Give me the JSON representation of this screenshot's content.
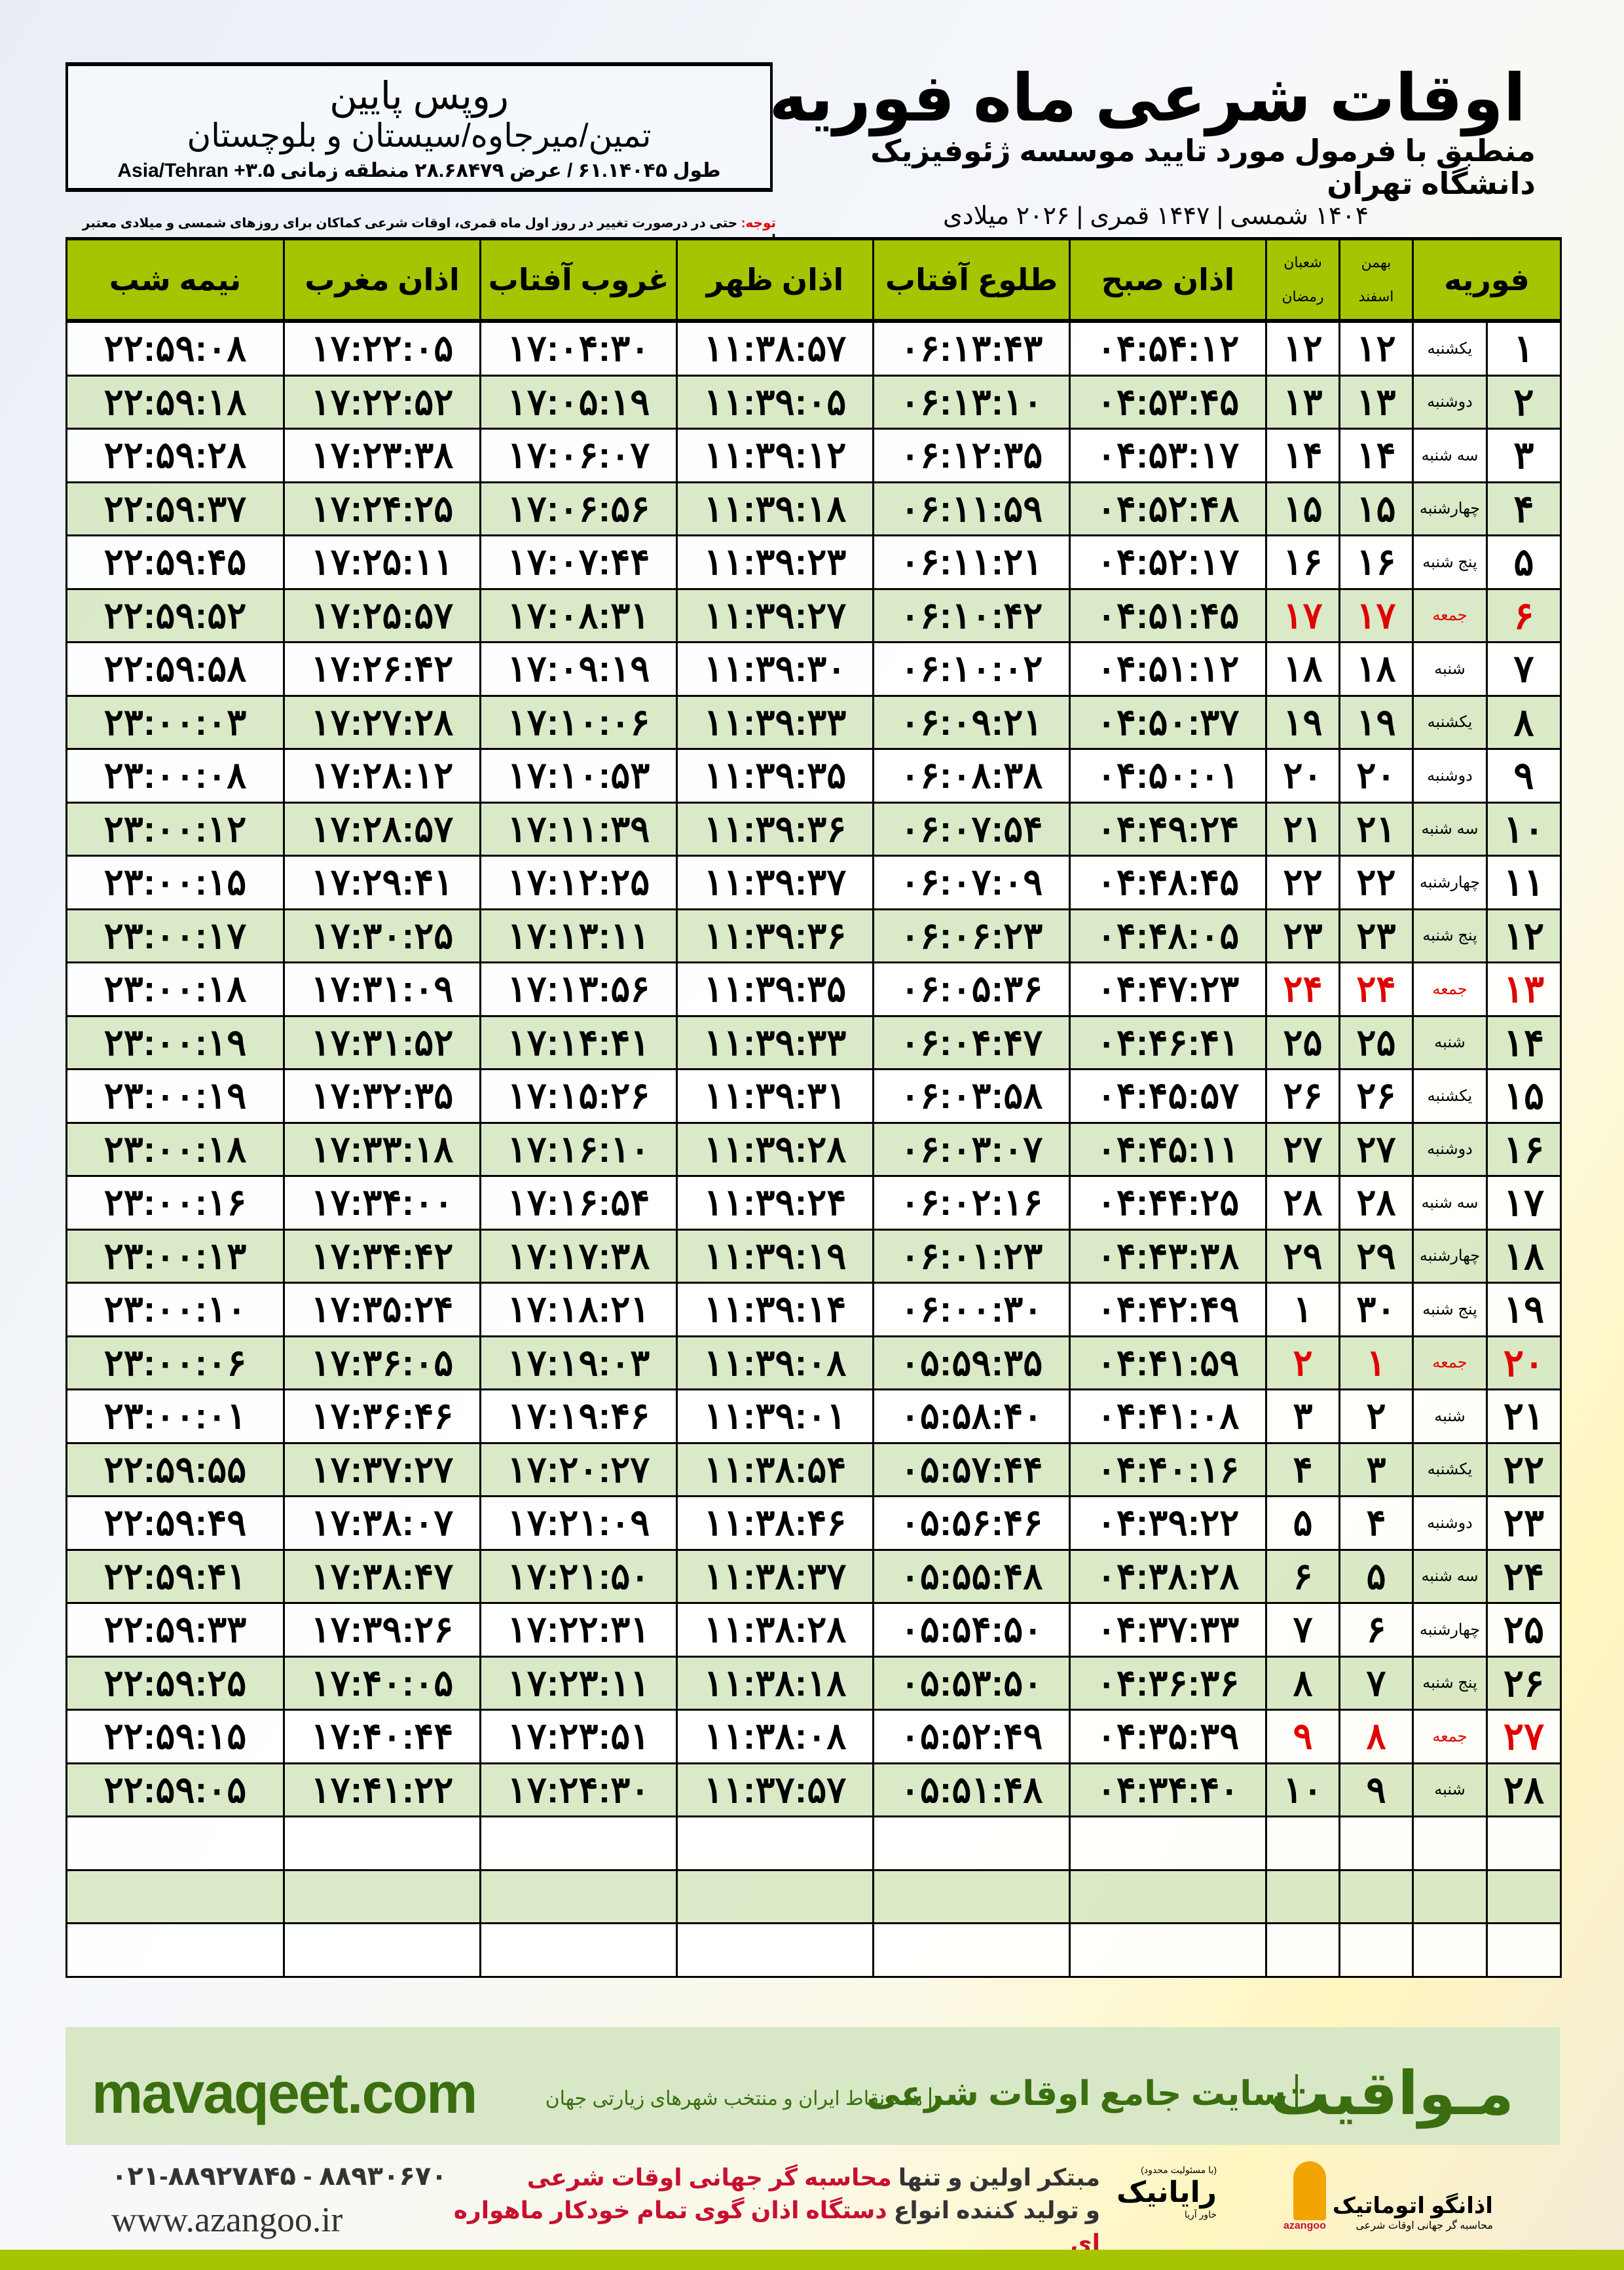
{
  "location": {
    "city": "روپس پایین",
    "province": "تمین/میرجاوه/سیستان و بلوچستان",
    "coords": "طول ۶۱.۱۴۰۴۵ / عرض ۲۸.۶۸۴۷۹ منطقه زمانی ۳.۵+ Asia/Tehran"
  },
  "header": {
    "title": "اوقات شرعی ماه فوریه",
    "subtitle": "منطبق با فرمول مورد تایید موسسه ژئوفیزیک دانشگاه تهران",
    "years": "۱۴۰۴ شمسی | ۱۴۴۷ قمری | ۲۰۲۶ میلادی"
  },
  "note": {
    "label": "توجه:",
    "text": " حتی در درصورت تغییر در روز اول ماه قمری، اوقات شرعی کماکان برای روزهای شمسی و میلادی معتبر است."
  },
  "table": {
    "headers": {
      "month": "فوریه",
      "solar_top": "بهمن",
      "solar_bottom": "اسفند",
      "lunar_top": "شعبان",
      "lunar_bottom": "رمضان",
      "fajr": "اذان صبح",
      "sunrise": "طلوع آفتاب",
      "dhuhr": "اذان ظهر",
      "sunset": "غروب آفتاب",
      "maghrib": "اذان مغرب",
      "midnight": "نیمه شب"
    },
    "holiday_color": "#e00000",
    "rows": [
      [
        "۱",
        "یکشنبه",
        "۱۲",
        "۱۲",
        "۰۴:۵۴:۱۲",
        "۰۶:۱۳:۴۳",
        "۱۱:۳۸:۵۷",
        "۱۷:۰۴:۳۰",
        "۱۷:۲۲:۰۵",
        "۲۲:۵۹:۰۸"
      ],
      [
        "۲",
        "دوشنبه",
        "۱۳",
        "۱۳",
        "۰۴:۵۳:۴۵",
        "۰۶:۱۳:۱۰",
        "۱۱:۳۹:۰۵",
        "۱۷:۰۵:۱۹",
        "۱۷:۲۲:۵۲",
        "۲۲:۵۹:۱۸"
      ],
      [
        "۳",
        "سه شنبه",
        "۱۴",
        "۱۴",
        "۰۴:۵۳:۱۷",
        "۰۶:۱۲:۳۵",
        "۱۱:۳۹:۱۲",
        "۱۷:۰۶:۰۷",
        "۱۷:۲۳:۳۸",
        "۲۲:۵۹:۲۸"
      ],
      [
        "۴",
        "چهارشنبه",
        "۱۵",
        "۱۵",
        "۰۴:۵۲:۴۸",
        "۰۶:۱۱:۵۹",
        "۱۱:۳۹:۱۸",
        "۱۷:۰۶:۵۶",
        "۱۷:۲۴:۲۵",
        "۲۲:۵۹:۳۷"
      ],
      [
        "۵",
        "پنج شنبه",
        "۱۶",
        "۱۶",
        "۰۴:۵۲:۱۷",
        "۰۶:۱۱:۲۱",
        "۱۱:۳۹:۲۳",
        "۱۷:۰۷:۴۴",
        "۱۷:۲۵:۱۱",
        "۲۲:۵۹:۴۵"
      ],
      [
        "۶",
        "جمعه",
        "۱۷",
        "۱۷",
        "۰۴:۵۱:۴۵",
        "۰۶:۱۰:۴۲",
        "۱۱:۳۹:۲۷",
        "۱۷:۰۸:۳۱",
        "۱۷:۲۵:۵۷",
        "۲۲:۵۹:۵۲"
      ],
      [
        "۷",
        "شنبه",
        "۱۸",
        "۱۸",
        "۰۴:۵۱:۱۲",
        "۰۶:۱۰:۰۲",
        "۱۱:۳۹:۳۰",
        "۱۷:۰۹:۱۹",
        "۱۷:۲۶:۴۲",
        "۲۲:۵۹:۵۸"
      ],
      [
        "۸",
        "یکشنبه",
        "۱۹",
        "۱۹",
        "۰۴:۵۰:۳۷",
        "۰۶:۰۹:۲۱",
        "۱۱:۳۹:۳۳",
        "۱۷:۱۰:۰۶",
        "۱۷:۲۷:۲۸",
        "۲۳:۰۰:۰۳"
      ],
      [
        "۹",
        "دوشنبه",
        "۲۰",
        "۲۰",
        "۰۴:۵۰:۰۱",
        "۰۶:۰۸:۳۸",
        "۱۱:۳۹:۳۵",
        "۱۷:۱۰:۵۳",
        "۱۷:۲۸:۱۲",
        "۲۳:۰۰:۰۸"
      ],
      [
        "۱۰",
        "سه شنبه",
        "۲۱",
        "۲۱",
        "۰۴:۴۹:۲۴",
        "۰۶:۰۷:۵۴",
        "۱۱:۳۹:۳۶",
        "۱۷:۱۱:۳۹",
        "۱۷:۲۸:۵۷",
        "۲۳:۰۰:۱۲"
      ],
      [
        "۱۱",
        "چهارشنبه",
        "۲۲",
        "۲۲",
        "۰۴:۴۸:۴۵",
        "۰۶:۰۷:۰۹",
        "۱۱:۳۹:۳۷",
        "۱۷:۱۲:۲۵",
        "۱۷:۲۹:۴۱",
        "۲۳:۰۰:۱۵"
      ],
      [
        "۱۲",
        "پنج شنبه",
        "۲۳",
        "۲۳",
        "۰۴:۴۸:۰۵",
        "۰۶:۰۶:۲۳",
        "۱۱:۳۹:۳۶",
        "۱۷:۱۳:۱۱",
        "۱۷:۳۰:۲۵",
        "۲۳:۰۰:۱۷"
      ],
      [
        "۱۳",
        "جمعه",
        "۲۴",
        "۲۴",
        "۰۴:۴۷:۲۳",
        "۰۶:۰۵:۳۶",
        "۱۱:۳۹:۳۵",
        "۱۷:۱۳:۵۶",
        "۱۷:۳۱:۰۹",
        "۲۳:۰۰:۱۸"
      ],
      [
        "۱۴",
        "شنبه",
        "۲۵",
        "۲۵",
        "۰۴:۴۶:۴۱",
        "۰۶:۰۴:۴۷",
        "۱۱:۳۹:۳۳",
        "۱۷:۱۴:۴۱",
        "۱۷:۳۱:۵۲",
        "۲۳:۰۰:۱۹"
      ],
      [
        "۱۵",
        "یکشنبه",
        "۲۶",
        "۲۶",
        "۰۴:۴۵:۵۷",
        "۰۶:۰۳:۵۸",
        "۱۱:۳۹:۳۱",
        "۱۷:۱۵:۲۶",
        "۱۷:۳۲:۳۵",
        "۲۳:۰۰:۱۹"
      ],
      [
        "۱۶",
        "دوشنبه",
        "۲۷",
        "۲۷",
        "۰۴:۴۵:۱۱",
        "۰۶:۰۳:۰۷",
        "۱۱:۳۹:۲۸",
        "۱۷:۱۶:۱۰",
        "۱۷:۳۳:۱۸",
        "۲۳:۰۰:۱۸"
      ],
      [
        "۱۷",
        "سه شنبه",
        "۲۸",
        "۲۸",
        "۰۴:۴۴:۲۵",
        "۰۶:۰۲:۱۶",
        "۱۱:۳۹:۲۴",
        "۱۷:۱۶:۵۴",
        "۱۷:۳۴:۰۰",
        "۲۳:۰۰:۱۶"
      ],
      [
        "۱۸",
        "چهارشنبه",
        "۲۹",
        "۲۹",
        "۰۴:۴۳:۳۸",
        "۰۶:۰۱:۲۳",
        "۱۱:۳۹:۱۹",
        "۱۷:۱۷:۳۸",
        "۱۷:۳۴:۴۲",
        "۲۳:۰۰:۱۳"
      ],
      [
        "۱۹",
        "پنج شنبه",
        "۳۰",
        "۱",
        "۰۴:۴۲:۴۹",
        "۰۶:۰۰:۳۰",
        "۱۱:۳۹:۱۴",
        "۱۷:۱۸:۲۱",
        "۱۷:۳۵:۲۴",
        "۲۳:۰۰:۱۰"
      ],
      [
        "۲۰",
        "جمعه",
        "۱",
        "۲",
        "۰۴:۴۱:۵۹",
        "۰۵:۵۹:۳۵",
        "۱۱:۳۹:۰۸",
        "۱۷:۱۹:۰۳",
        "۱۷:۳۶:۰۵",
        "۲۳:۰۰:۰۶"
      ],
      [
        "۲۱",
        "شنبه",
        "۲",
        "۳",
        "۰۴:۴۱:۰۸",
        "۰۵:۵۸:۴۰",
        "۱۱:۳۹:۰۱",
        "۱۷:۱۹:۴۶",
        "۱۷:۳۶:۴۶",
        "۲۳:۰۰:۰۱"
      ],
      [
        "۲۲",
        "یکشنبه",
        "۳",
        "۴",
        "۰۴:۴۰:۱۶",
        "۰۵:۵۷:۴۴",
        "۱۱:۳۸:۵۴",
        "۱۷:۲۰:۲۷",
        "۱۷:۳۷:۲۷",
        "۲۲:۵۹:۵۵"
      ],
      [
        "۲۳",
        "دوشنبه",
        "۴",
        "۵",
        "۰۴:۳۹:۲۲",
        "۰۵:۵۶:۴۶",
        "۱۱:۳۸:۴۶",
        "۱۷:۲۱:۰۹",
        "۱۷:۳۸:۰۷",
        "۲۲:۵۹:۴۹"
      ],
      [
        "۲۴",
        "سه شنبه",
        "۵",
        "۶",
        "۰۴:۳۸:۲۸",
        "۰۵:۵۵:۴۸",
        "۱۱:۳۸:۳۷",
        "۱۷:۲۱:۵۰",
        "۱۷:۳۸:۴۷",
        "۲۲:۵۹:۴۱"
      ],
      [
        "۲۵",
        "چهارشنبه",
        "۶",
        "۷",
        "۰۴:۳۷:۳۳",
        "۰۵:۵۴:۵۰",
        "۱۱:۳۸:۲۸",
        "۱۷:۲۲:۳۱",
        "۱۷:۳۹:۲۶",
        "۲۲:۵۹:۳۳"
      ],
      [
        "۲۶",
        "پنج شنبه",
        "۷",
        "۸",
        "۰۴:۳۶:۳۶",
        "۰۵:۵۳:۵۰",
        "۱۱:۳۸:۱۸",
        "۱۷:۲۳:۱۱",
        "۱۷:۴۰:۰۵",
        "۲۲:۵۹:۲۵"
      ],
      [
        "۲۷",
        "جمعه",
        "۸",
        "۹",
        "۰۴:۳۵:۳۹",
        "۰۵:۵۲:۴۹",
        "۱۱:۳۸:۰۸",
        "۱۷:۲۳:۵۱",
        "۱۷:۴۰:۴۴",
        "۲۲:۵۹:۱۵"
      ],
      [
        "۲۸",
        "شنبه",
        "۹",
        "۱۰",
        "۰۴:۳۴:۴۰",
        "۰۵:۵۱:۴۸",
        "۱۱:۳۷:۵۷",
        "۱۷:۲۴:۳۰",
        "۱۷:۴۱:۲۲",
        "۲۲:۵۹:۰۵"
      ]
    ],
    "holiday_weekday": "جمعه"
  },
  "banner": {
    "brand": "مـواقیت",
    "tagline": "سایت جامع اوقات شرعی",
    "tagline2": "همه نقاط ایران و منتخب شهرهای زیارتی جهان",
    "site": "mavaqeet.com"
  },
  "footer": {
    "phones": "۰۲۱-۸۸۹۲۷۸۴۵ - ۸۸۹۳۰۶۷۰",
    "web": "www.azangoo.ir",
    "slogan1a": "مبتکر اولین و تنها ",
    "slogan1b": "محاسبه گر جهانی اوقات شرعی",
    "slogan2a": "و تولید کننده انواع ",
    "slogan2b": "دستگاه اذان گوی تمام خودکار ماهواره ای",
    "logo1_small": "(با مسئولیت محدود)",
    "logo1": "رایانیک",
    "logo1_sub": "خاور آریا",
    "logo2": "اذانگو اتوماتیک",
    "logo2_sub": "محاسبه گر جهانی اوقات شرعی",
    "logo2_latin": "azangoo"
  },
  "colors": {
    "header_bg": "#a6c400",
    "row_alt": "#d8e8c6",
    "brand_green": "#3a6e10",
    "accent_red": "#c8102e"
  }
}
